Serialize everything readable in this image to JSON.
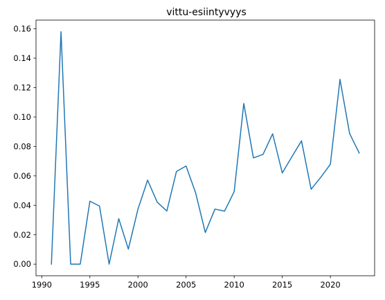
{
  "chart_data": {
    "type": "line",
    "title": "vittu-esiintyvyys",
    "xlabel": "",
    "ylabel": "",
    "xlim": [
      1989.4,
      2024.6
    ],
    "ylim": [
      -0.0079,
      0.1659
    ],
    "grid": false,
    "legend": "none",
    "x_ticks": [
      1990,
      1995,
      2000,
      2005,
      2010,
      2015,
      2020
    ],
    "x_tick_labels": [
      "1990",
      "1995",
      "2000",
      "2005",
      "2010",
      "2015",
      "2020"
    ],
    "y_ticks": [
      0.0,
      0.02,
      0.04,
      0.06,
      0.08,
      0.1,
      0.12,
      0.14,
      0.16
    ],
    "y_tick_labels": [
      "0.00",
      "0.02",
      "0.04",
      "0.06",
      "0.08",
      "0.10",
      "0.12",
      "0.14",
      "0.16"
    ],
    "series": [
      {
        "color": "#1f77b4",
        "x": [
          1991,
          1992,
          1993,
          1994,
          1995,
          1996,
          1997,
          1998,
          1999,
          2000,
          2001,
          2002,
          2003,
          2004,
          2005,
          2006,
          2007,
          2008,
          2009,
          2010,
          2011,
          2012,
          2013,
          2014,
          2015,
          2016,
          2017,
          2018,
          2019,
          2020,
          2021,
          2022,
          2023
        ],
        "y": [
          0.0,
          0.158,
          0.0,
          0.0,
          0.0428,
          0.0395,
          0.0,
          0.0309,
          0.0102,
          0.0374,
          0.0571,
          0.0421,
          0.0361,
          0.063,
          0.0667,
          0.0483,
          0.0215,
          0.0374,
          0.036,
          0.0493,
          0.1092,
          0.0722,
          0.0746,
          0.0886,
          0.062,
          0.073,
          0.0838,
          0.0509,
          0.059,
          0.0679,
          0.1256,
          0.0888,
          0.0755
        ]
      }
    ]
  }
}
